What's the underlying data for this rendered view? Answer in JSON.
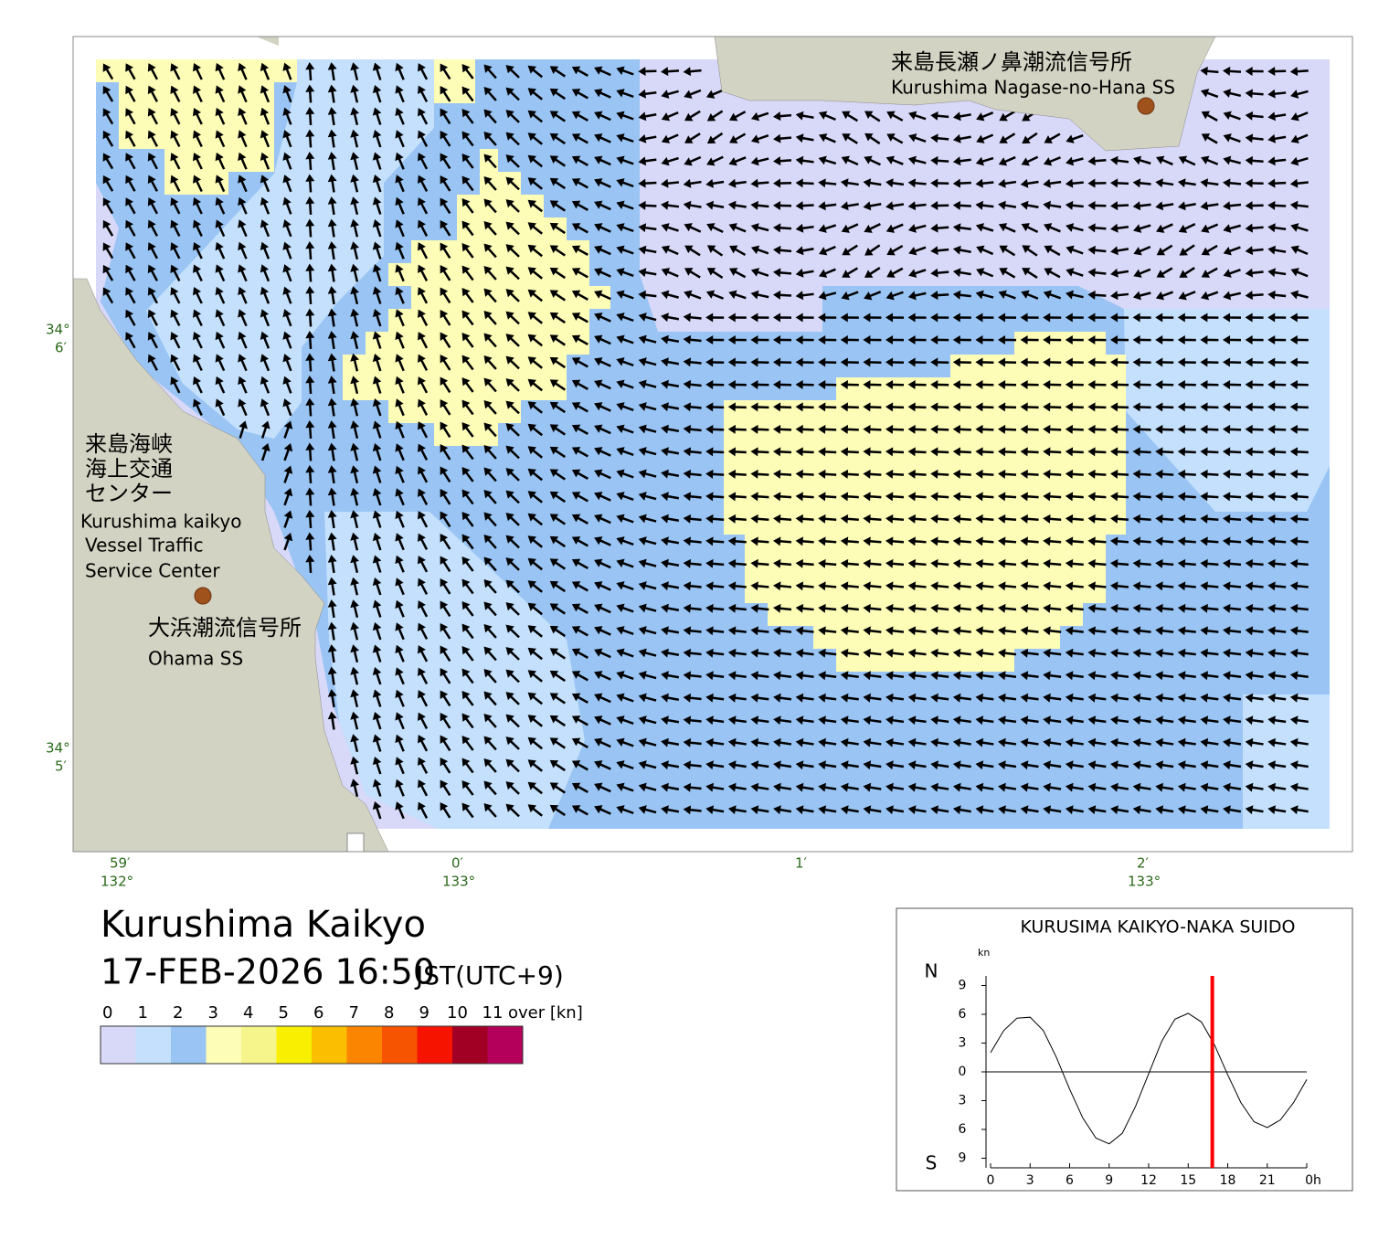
{
  "title": "Kurushima Kaikyo",
  "datetime": "17-FEB-2026 16:50",
  "timezone": "JST(UTC+9)",
  "legend": {
    "ticks": [
      0,
      1,
      2,
      3,
      4,
      5,
      6,
      7,
      8,
      9,
      10,
      11
    ],
    "unit": "over [kn]",
    "colors": [
      "#d8d8f8",
      "#c4e0fc",
      "#99c4f3",
      "#fdfdb8",
      "#f5f58c",
      "#f8f000",
      "#fbbe00",
      "#fb8500",
      "#f75400",
      "#f61400",
      "#a10024",
      "#b4005a"
    ]
  },
  "map": {
    "lat_labels": [
      {
        "deg": "34°",
        "min": "6′"
      },
      {
        "deg": "34°",
        "min": "5′"
      }
    ],
    "lon_labels": [
      {
        "min": "59′",
        "deg": "132°"
      },
      {
        "min": "0′",
        "deg": "133°"
      },
      {
        "min": "1′"
      },
      {
        "min": "2′",
        "deg": "133°"
      }
    ],
    "places": {
      "nagase_ja": "来島長瀬ノ鼻潮流信号所",
      "nagase_en": "Kurushima Nagase-no-Hana SS",
      "vts_ja": [
        "来島海峡",
        "海上交通",
        "センター"
      ],
      "vts_en": [
        "Kurushima kaikyo",
        "Vessel Traffic",
        "Service Center"
      ],
      "ohama_ja": "大浜潮流信号所",
      "ohama_en": "Ohama SS"
    }
  },
  "chart_data": {
    "type": "line",
    "title": "KURUSIMA KAIKYO-NAKA SUIDO",
    "y_unit": "kn",
    "north_label": "N",
    "south_label": "S",
    "x": [
      0,
      1,
      2,
      3,
      4,
      5,
      6,
      7,
      8,
      9,
      10,
      11,
      12,
      13,
      14,
      15,
      16,
      17,
      18,
      19,
      20,
      21,
      22,
      23,
      24
    ],
    "values": [
      2,
      4.3,
      5.6,
      5.7,
      4.3,
      1.5,
      -1.8,
      -4.8,
      -6.9,
      -7.5,
      -6.4,
      -3.6,
      -0.2,
      3.2,
      5.5,
      6.1,
      5.2,
      2.8,
      -0.3,
      -3.2,
      -5.2,
      -5.8,
      -5,
      -3.2,
      -0.8
    ],
    "color": "#000000",
    "marker": 16.83,
    "marker_color": "#ff0000",
    "xlim": [
      0,
      24
    ],
    "ylim": [
      -10,
      10
    ],
    "xticks": [
      0,
      3,
      6,
      9,
      12,
      15,
      18,
      21,
      {
        "value": 24,
        "label": "0h"
      }
    ],
    "yticks": [
      {
        "value": 9,
        "label": "9"
      },
      6,
      3,
      0,
      {
        "value": -3,
        "label": "3"
      },
      {
        "value": -6,
        "label": "6"
      },
      {
        "value": -9,
        "label": "9"
      }
    ]
  }
}
